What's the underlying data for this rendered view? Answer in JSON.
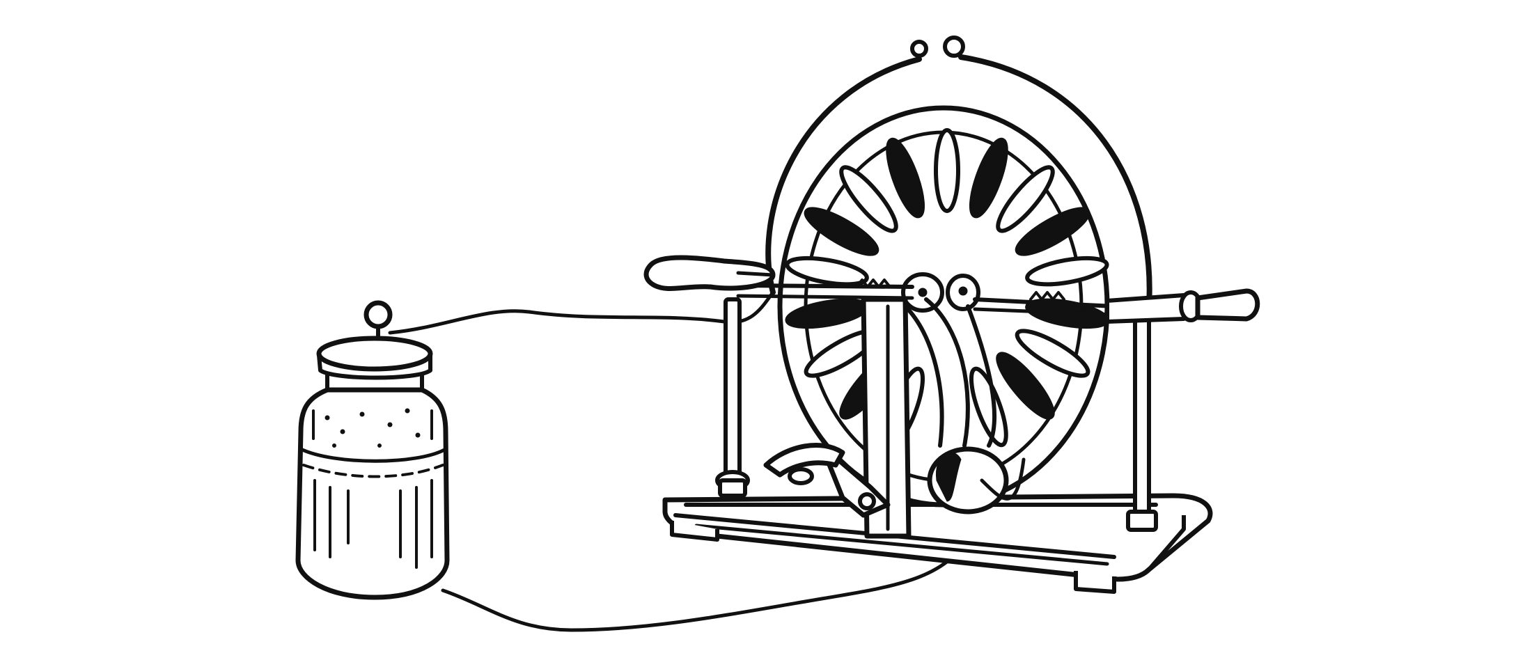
{
  "illustration": {
    "subject": "wimshurst-machine-with-leyden-jar",
    "colors": {
      "ink": "#111111",
      "paper": "#ffffff"
    }
  }
}
